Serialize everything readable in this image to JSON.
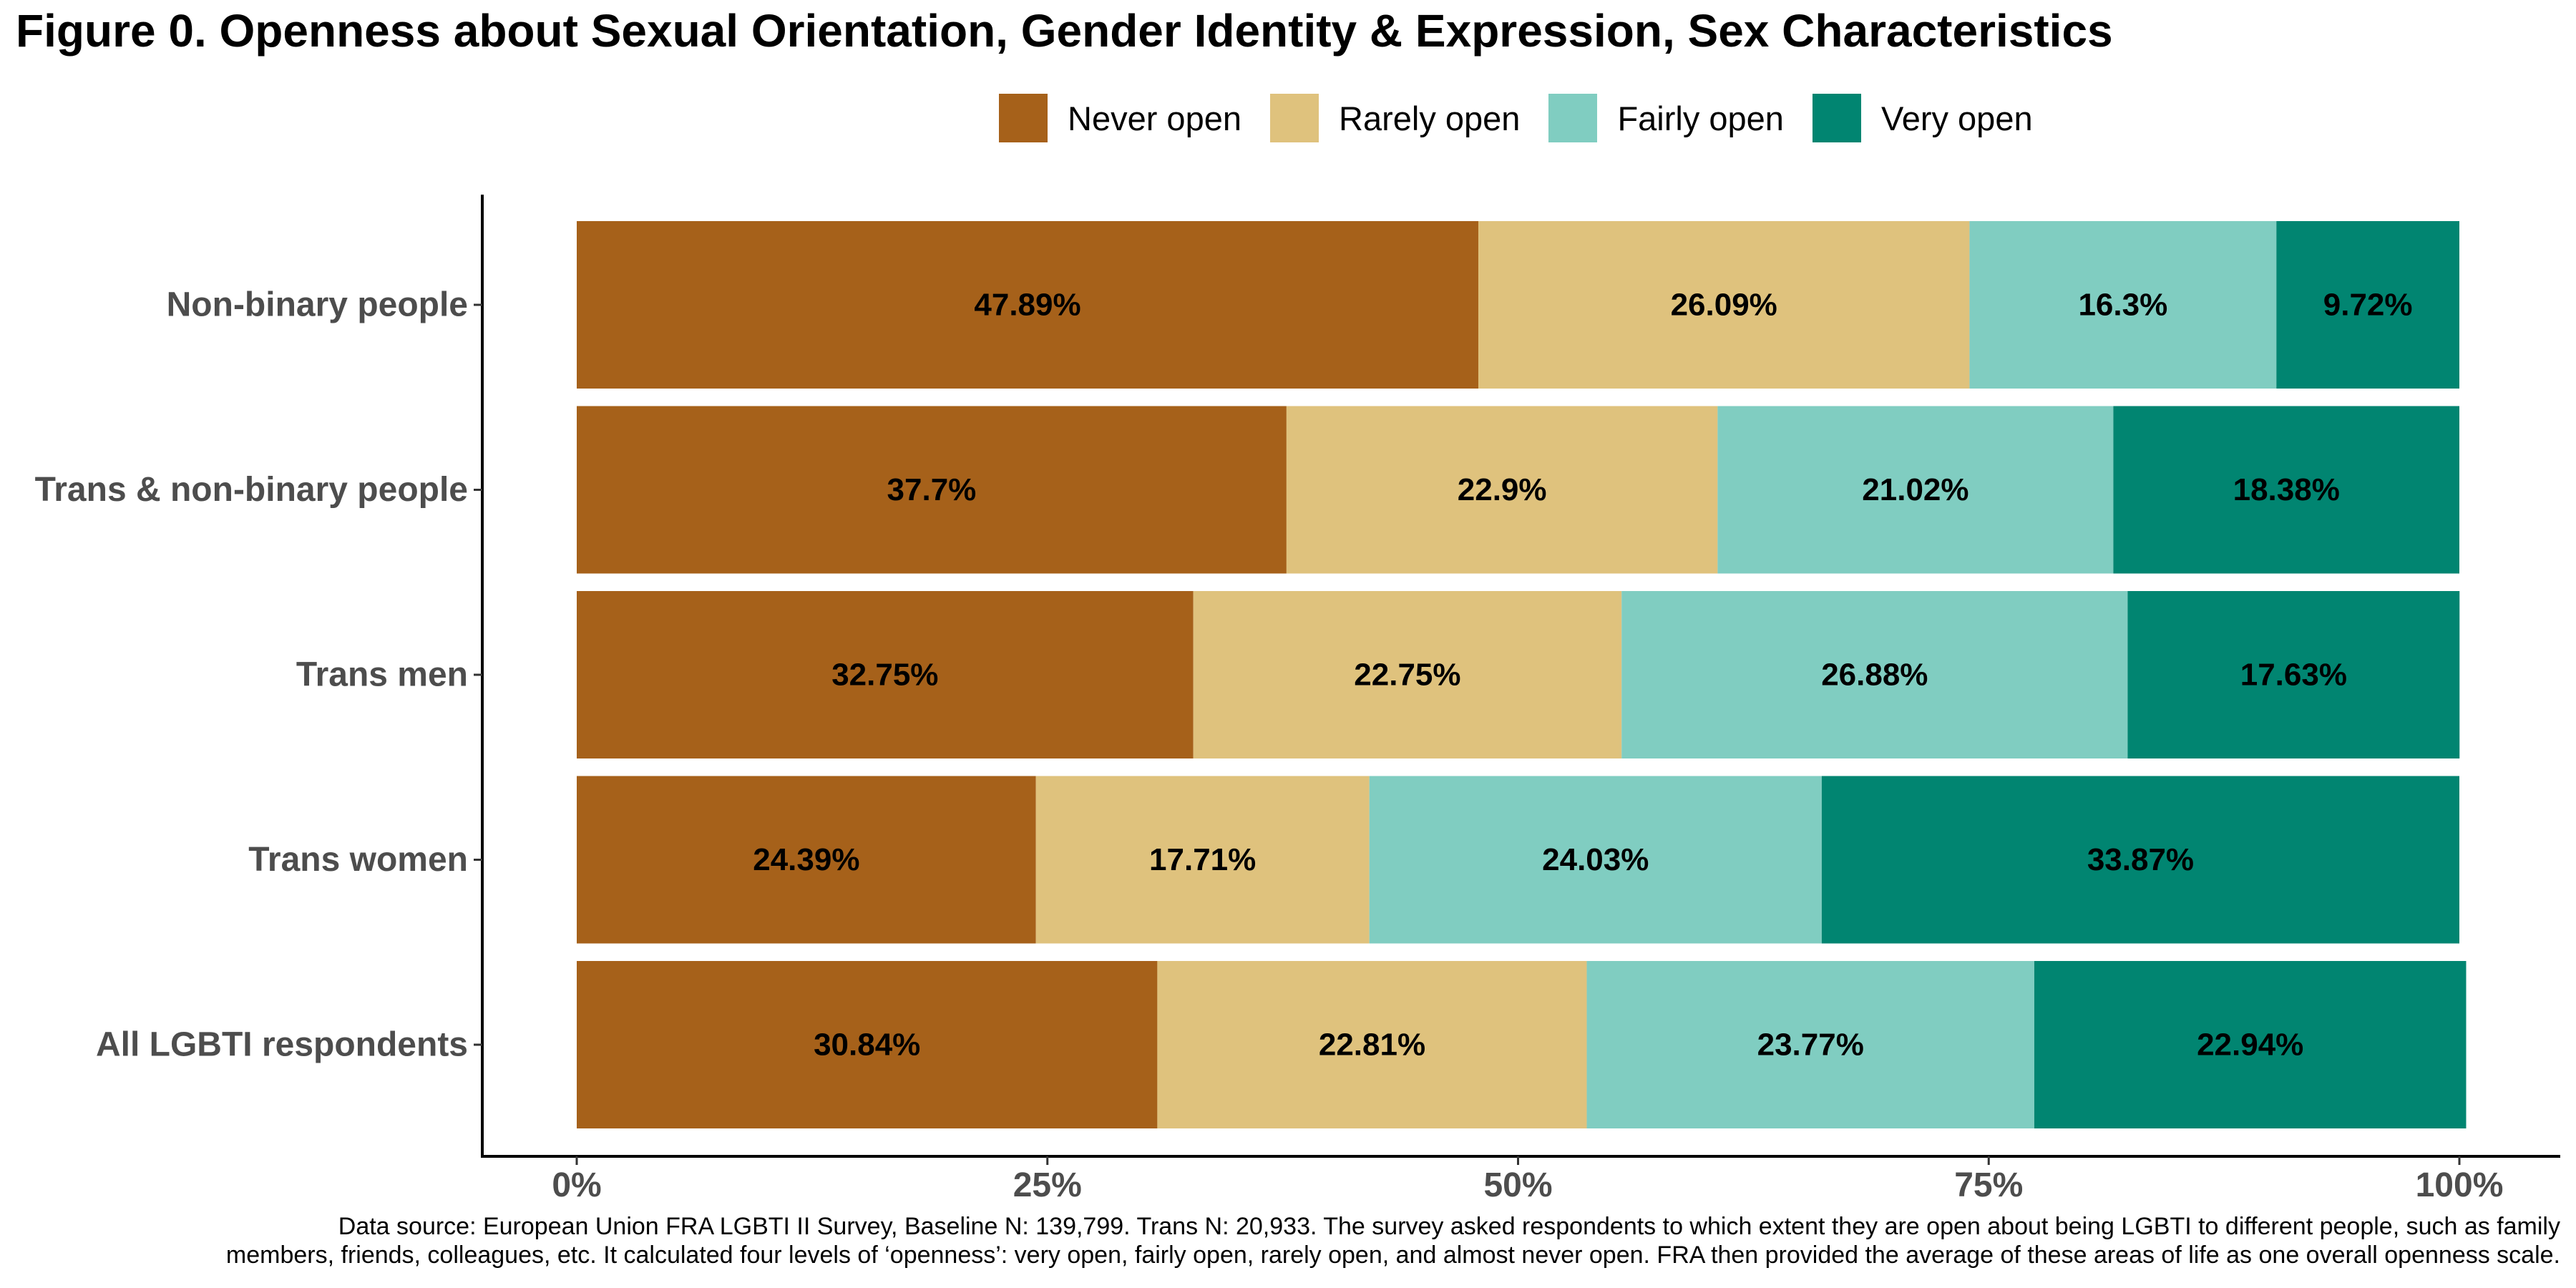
{
  "chart_data": {
    "type": "bar",
    "orientation": "horizontal",
    "stacked": true,
    "title": "Figure 0. Openness about Sexual Orientation, Gender Identity & Expression, Sex Characteristics",
    "categories": [
      "Non-binary people",
      "Trans & non-binary people",
      "Trans men",
      "Trans women",
      "All LGBTI respondents"
    ],
    "series": [
      {
        "name": "Never open",
        "color": "#a6611a",
        "values": [
          47.89,
          37.7,
          32.75,
          24.39,
          30.84
        ],
        "labels": [
          "47.89%",
          "37.7%",
          "32.75%",
          "24.39%",
          "30.84%"
        ]
      },
      {
        "name": "Rarely open",
        "color": "#dfc27d",
        "values": [
          26.09,
          22.9,
          22.75,
          17.71,
          22.81
        ],
        "labels": [
          "26.09%",
          "22.9%",
          "22.75%",
          "17.71%",
          "22.81%"
        ]
      },
      {
        "name": "Fairly open",
        "color": "#80cdc1",
        "values": [
          16.3,
          21.02,
          26.88,
          24.03,
          23.77
        ],
        "labels": [
          "16.3%",
          "21.02%",
          "26.88%",
          "24.03%",
          "23.77%"
        ]
      },
      {
        "name": "Very open",
        "color": "#018571",
        "values": [
          9.72,
          18.38,
          17.63,
          33.87,
          22.94
        ],
        "labels": [
          "9.72%",
          "18.38%",
          "17.63%",
          "33.87%",
          "22.94%"
        ]
      }
    ],
    "x_ticks": [
      0,
      25,
      50,
      75,
      100
    ],
    "x_tick_labels": [
      "0%",
      "25%",
      "50%",
      "75%",
      "100%"
    ],
    "xlim": [
      0,
      100
    ],
    "xlabel": "",
    "ylabel": "",
    "grid": false,
    "legend_position": "top"
  },
  "caption": {
    "line1": "Data source: European Union FRA LGBTI II Survey, Baseline N: 139,799. Trans N: 20,933. The survey asked respondents to which extent they are open about being LGBTI to different people, such as family",
    "line2": "members, friends, colleagues, etc. It calculated four levels of ‘openness’: very open, fairly open, rarely open, and almost never open. FRA then provided the average of these areas of life as one overall openness scale."
  }
}
